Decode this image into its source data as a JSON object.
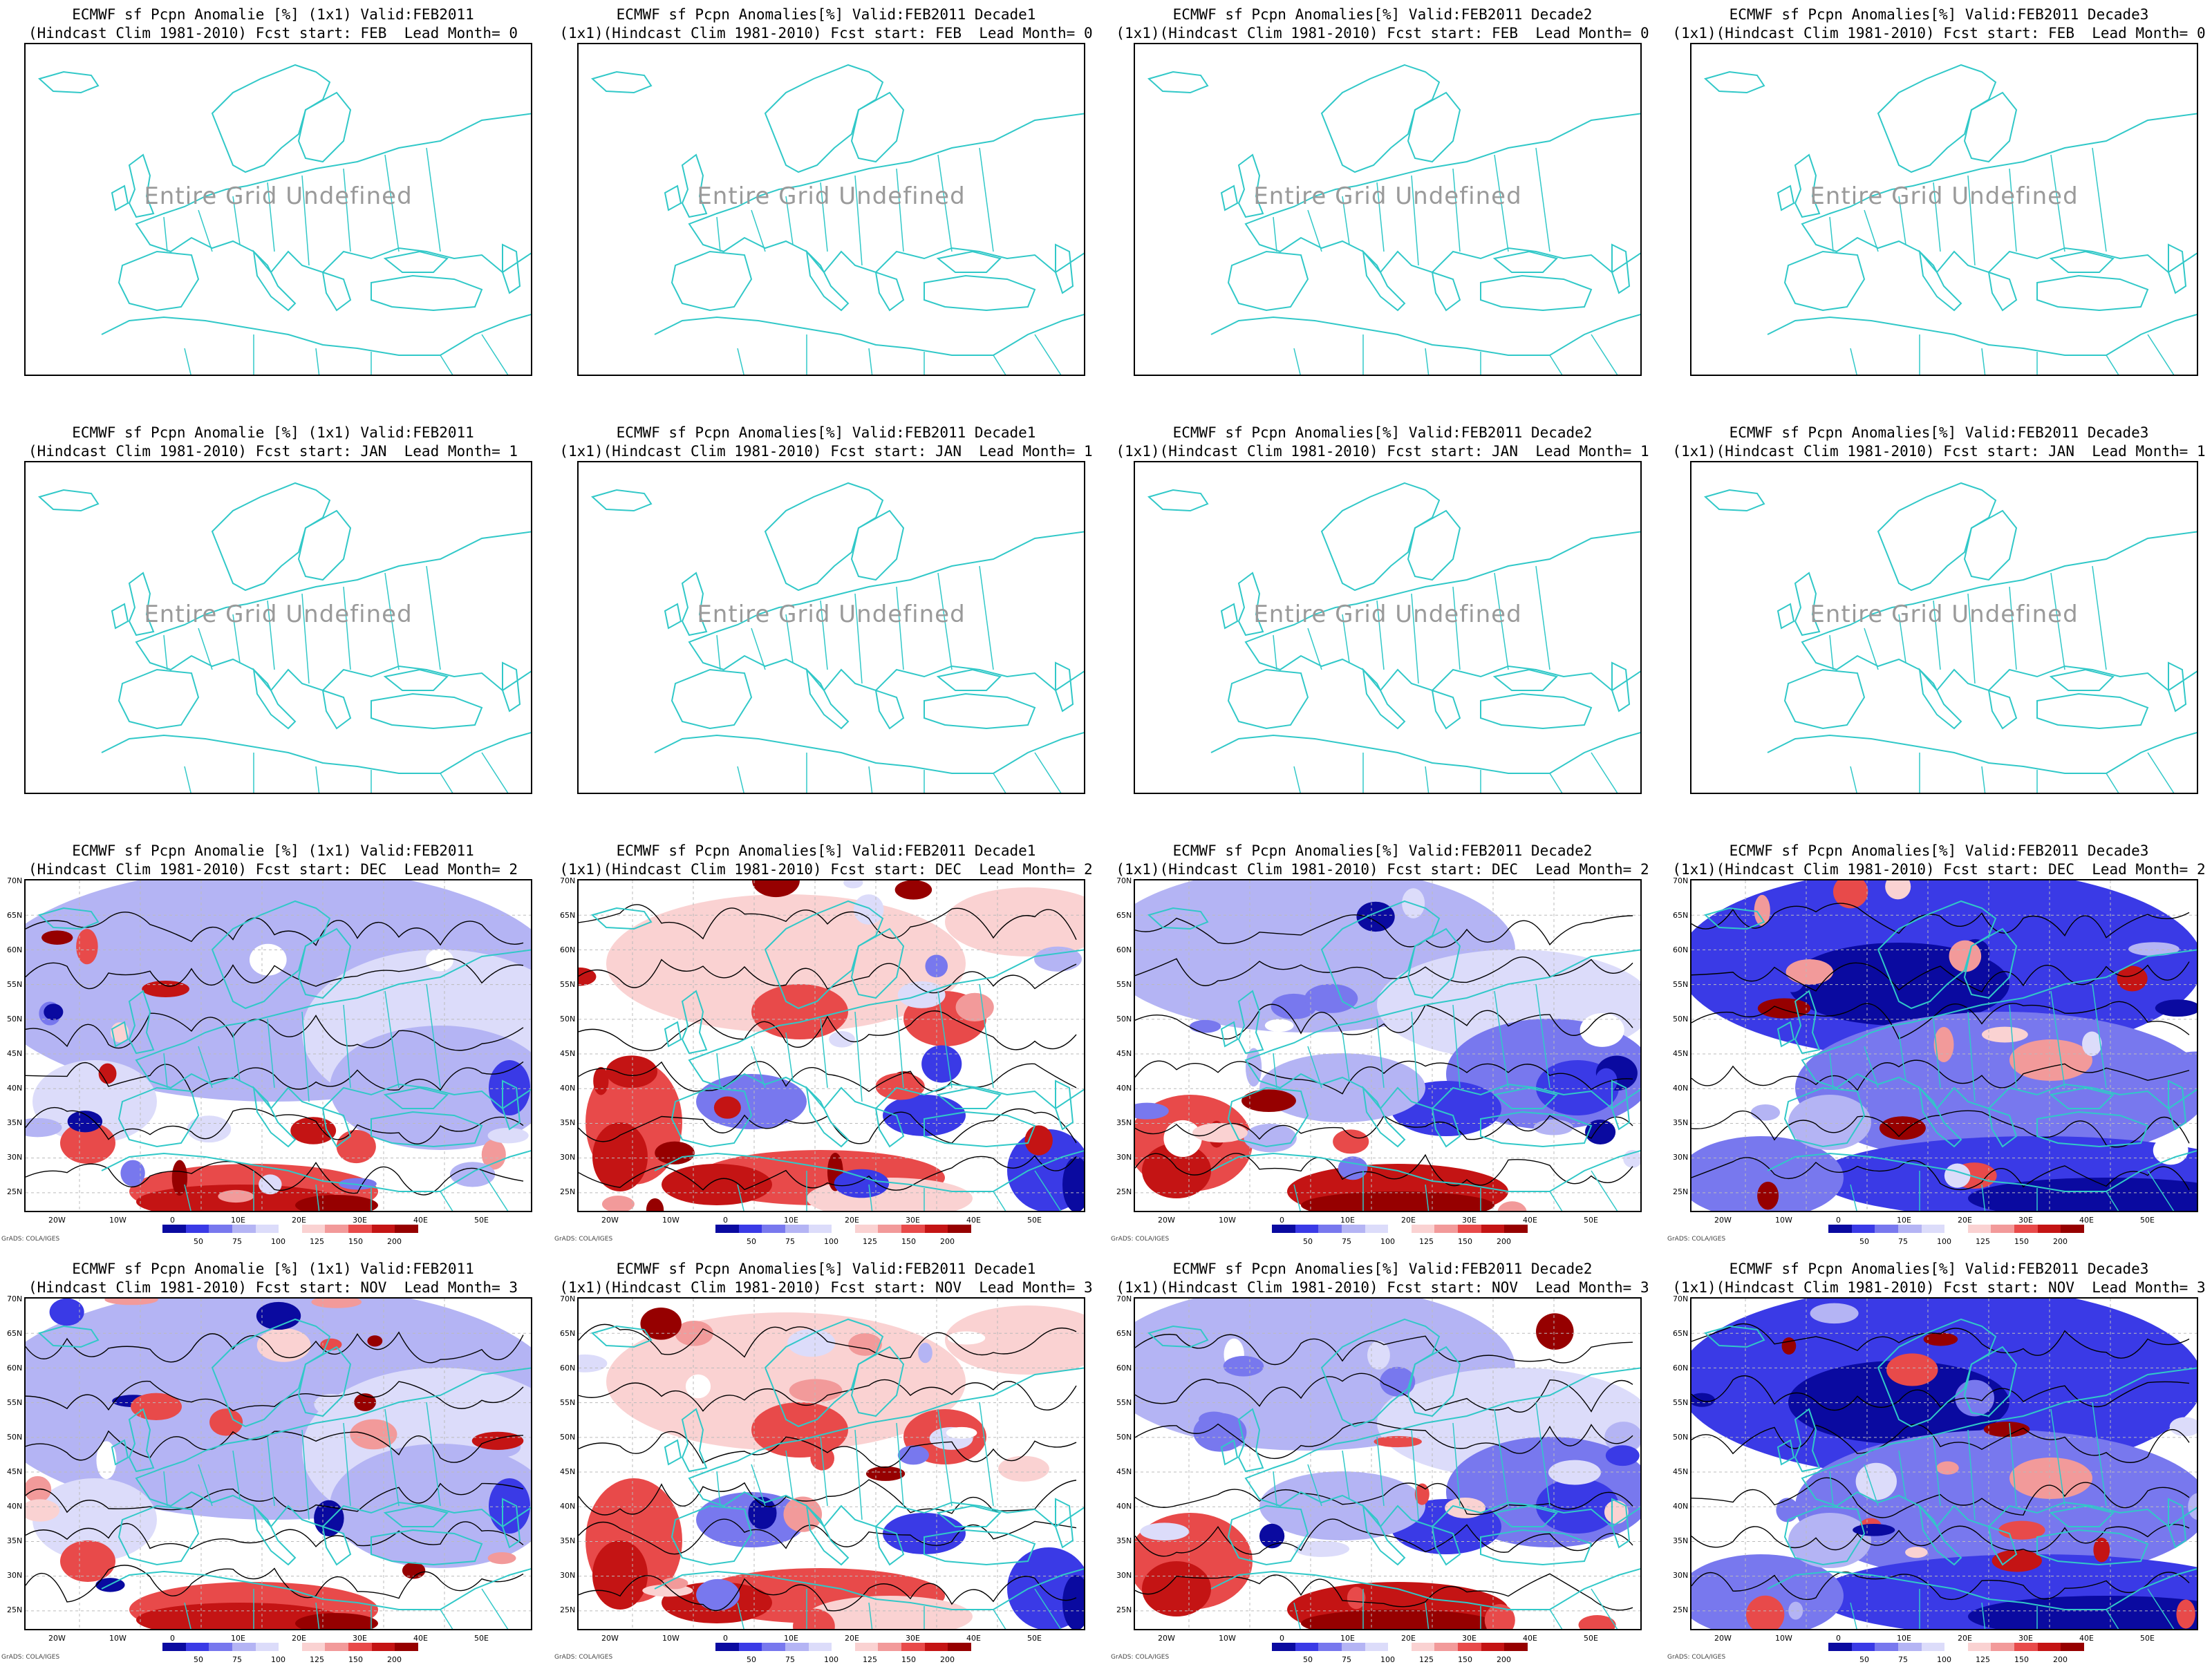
{
  "undefined_text": "Entire Grid Undefined",
  "credit": "GrADS: COLA/IGES",
  "rows": [
    {
      "state": "undefined",
      "titles": [
        [
          "ECMWF sf Pcpn Anomalie [%] (1x1) Valid:FEB2011",
          "(Hindcast Clim 1981-2010) Fcst start: FEB  Lead Month= 0"
        ],
        [
          "ECMWF sf Pcpn Anomalies[%] Valid:FEB2011 Decade1",
          "(1x1)(Hindcast Clim 1981-2010) Fcst start: FEB  Lead Month= 0"
        ],
        [
          "ECMWF sf Pcpn Anomalies[%] Valid:FEB2011 Decade2",
          "(1x1)(Hindcast Clim 1981-2010) Fcst start: FEB  Lead Month= 0"
        ],
        [
          "ECMWF sf Pcpn Anomalies[%] Valid:FEB2011 Decade3",
          "(1x1)(Hindcast Clim 1981-2010) Fcst start: FEB  Lead Month= 0"
        ]
      ]
    },
    {
      "state": "undefined",
      "titles": [
        [
          "ECMWF sf Pcpn Anomalie [%] (1x1) Valid:FEB2011",
          "(Hindcast Clim 1981-2010) Fcst start: JAN  Lead Month= 1"
        ],
        [
          "ECMWF sf Pcpn Anomalies[%] Valid:FEB2011 Decade1",
          "(1x1)(Hindcast Clim 1981-2010) Fcst start: JAN  Lead Month= 1"
        ],
        [
          "ECMWF sf Pcpn Anomalies[%] Valid:FEB2011 Decade2",
          "(1x1)(Hindcast Clim 1981-2010) Fcst start: JAN  Lead Month= 1"
        ],
        [
          "ECMWF sf Pcpn Anomalies[%] Valid:FEB2011 Decade3",
          "(1x1)(Hindcast Clim 1981-2010) Fcst start: JAN  Lead Month= 1"
        ]
      ]
    },
    {
      "state": "data",
      "titles": [
        [
          "ECMWF sf Pcpn Anomalie [%] (1x1) Valid:FEB2011",
          "(Hindcast Clim 1981-2010) Fcst start: DEC  Lead Month= 2"
        ],
        [
          "ECMWF sf Pcpn Anomalies[%] Valid:FEB2011 Decade1",
          "(1x1)(Hindcast Clim 1981-2010) Fcst start: DEC  Lead Month= 2"
        ],
        [
          "ECMWF sf Pcpn Anomalies[%] Valid:FEB2011 Decade2",
          "(1x1)(Hindcast Clim 1981-2010) Fcst start: DEC  Lead Month= 2"
        ],
        [
          "ECMWF sf Pcpn Anomalies[%] Valid:FEB2011 Decade3",
          "(1x1)(Hindcast Clim 1981-2010) Fcst start: DEC  Lead Month= 2"
        ]
      ]
    },
    {
      "state": "data",
      "titles": [
        [
          "ECMWF sf Pcpn Anomalie [%] (1x1) Valid:FEB2011",
          "(Hindcast Clim 1981-2010) Fcst start: NOV  Lead Month= 3"
        ],
        [
          "ECMWF sf Pcpn Anomalies[%] Valid:FEB2011 Decade1",
          "(1x1)(Hindcast Clim 1981-2010) Fcst start: NOV  Lead Month= 3"
        ],
        [
          "ECMWF sf Pcpn Anomalies[%] Valid:FEB2011 Decade2",
          "(1x1)(Hindcast Clim 1981-2010) Fcst start: NOV  Lead Month= 3"
        ],
        [
          "ECMWF sf Pcpn Anomalies[%] Valid:FEB2011 Decade3",
          "(1x1)(Hindcast Clim 1981-2010) Fcst start: NOV  Lead Month= 3"
        ]
      ]
    }
  ],
  "lat_labels": [
    "70N",
    "65N",
    "60N",
    "55N",
    "50N",
    "45N",
    "40N",
    "35N",
    "30N",
    "25N"
  ],
  "lon_labels": [
    "20W",
    "10W",
    "0",
    "10E",
    "20E",
    "30E",
    "40E",
    "50E"
  ],
  "colorbar": {
    "ticks": [
      "50",
      "75",
      "100",
      "125",
      "150",
      "200"
    ],
    "colors": [
      "#0a0aa0",
      "#3a3ae6",
      "#7878ee",
      "#b4b4f4",
      "#dcdcfa",
      "#ffffff",
      "#fad2d2",
      "#f29a9a",
      "#e84a4a",
      "#c41414",
      "#960000"
    ]
  },
  "colors": {
    "coast": "#31c8c8",
    "contour": "#000000",
    "frame": "#000000"
  },
  "panel_themes": [
    [
      "light-blue",
      "mixed-red",
      "mixed-blue-red",
      "dark-blue"
    ],
    [
      "light-blue",
      "mixed-red",
      "mixed-blue-red",
      "dark-blue"
    ]
  ]
}
